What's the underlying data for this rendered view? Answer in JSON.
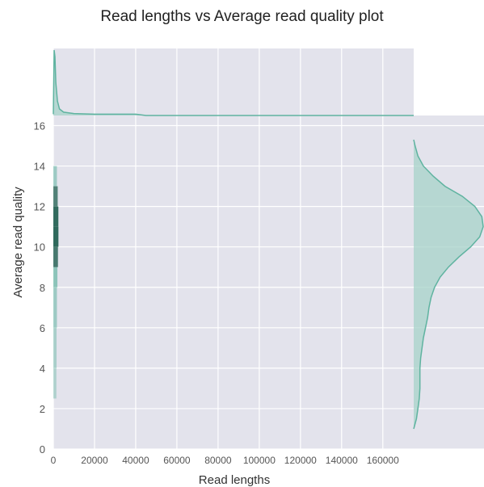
{
  "chart_data": {
    "type": "kde-joint",
    "title": "Read lengths vs Average read quality plot",
    "xlabel": "Read lengths",
    "ylabel": "Average read quality",
    "xlim": [
      0,
      175000
    ],
    "ylim": [
      0,
      16.5
    ],
    "xticks": [
      0,
      20000,
      40000,
      60000,
      80000,
      100000,
      120000,
      140000,
      160000
    ],
    "xtick_labels": [
      "0",
      "20000",
      "40000",
      "60000",
      "80000",
      "100000",
      "120000",
      "140000",
      "160000"
    ],
    "yticks": [
      0,
      2,
      4,
      6,
      8,
      10,
      12,
      14,
      16
    ],
    "ytick_labels": [
      "0",
      "2",
      "4",
      "6",
      "8",
      "10",
      "12",
      "14",
      "16"
    ],
    "grid": true,
    "colors": {
      "fill": "#a7d3c9",
      "line": "#5fb3a0",
      "dense": "#1c5c4c",
      "background": "#e3e3ec"
    },
    "marginal_x": {
      "x": [
        0,
        400,
        800,
        1200,
        2000,
        3000,
        5000,
        10000,
        20000,
        40000,
        45000,
        175000
      ],
      "density": [
        0.02,
        1.0,
        0.9,
        0.5,
        0.22,
        0.1,
        0.05,
        0.03,
        0.02,
        0.02,
        0.0,
        0.0
      ]
    },
    "marginal_y": {
      "y": [
        1.0,
        1.5,
        2.0,
        2.5,
        3.0,
        3.5,
        4.0,
        4.5,
        5.0,
        5.5,
        6.0,
        6.5,
        7.0,
        7.5,
        8.0,
        8.5,
        9.0,
        9.5,
        10.0,
        10.5,
        11.0,
        11.5,
        12.0,
        12.5,
        13.0,
        13.5,
        14.0,
        14.5,
        15.0,
        15.3
      ],
      "density": [
        0.0,
        0.04,
        0.06,
        0.08,
        0.09,
        0.09,
        0.09,
        0.1,
        0.12,
        0.14,
        0.17,
        0.2,
        0.22,
        0.25,
        0.3,
        0.38,
        0.5,
        0.65,
        0.82,
        0.95,
        1.0,
        0.98,
        0.88,
        0.7,
        0.45,
        0.28,
        0.14,
        0.06,
        0.02,
        0.0
      ]
    },
    "joint_density": {
      "x_center": 1000,
      "y": [
        2.5,
        4,
        6,
        8,
        9,
        10,
        11,
        12,
        13,
        14
      ],
      "density": [
        0.05,
        0.1,
        0.2,
        0.4,
        0.6,
        0.85,
        1.0,
        0.8,
        0.45,
        0.15
      ]
    }
  }
}
